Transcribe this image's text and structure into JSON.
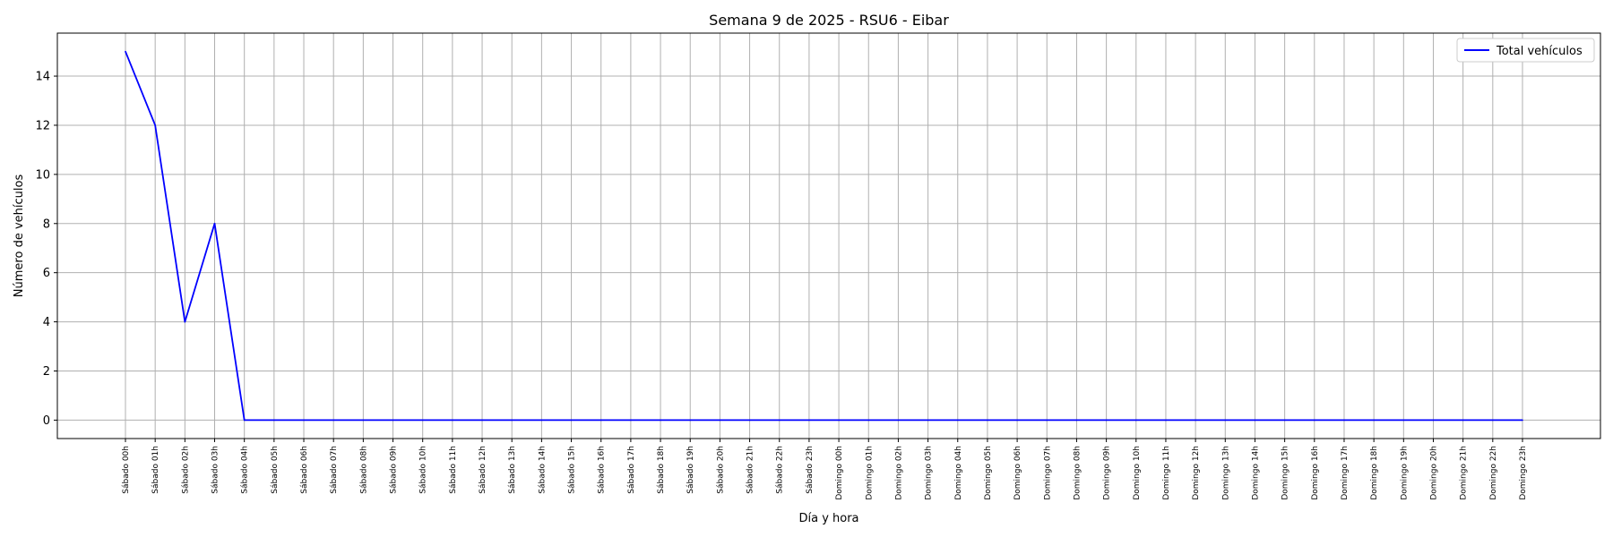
{
  "chart_data": {
    "type": "line",
    "title": "Semana 9 de 2025 - RSU6 - Eibar",
    "xlabel": "Día y hora",
    "ylabel": "Número de vehículos",
    "ylim": [
      -0.75,
      15.75
    ],
    "yticks": [
      0,
      2,
      4,
      6,
      8,
      10,
      12,
      14
    ],
    "grid": true,
    "legend": "top-right",
    "categories": [
      "Sábado 00h",
      "Sábado 01h",
      "Sábado 02h",
      "Sábado 03h",
      "Sábado 04h",
      "Sábado 05h",
      "Sábado 06h",
      "Sábado 07h",
      "Sábado 08h",
      "Sábado 09h",
      "Sábado 10h",
      "Sábado 11h",
      "Sábado 12h",
      "Sábado 13h",
      "Sábado 14h",
      "Sábado 15h",
      "Sábado 16h",
      "Sábado 17h",
      "Sábado 18h",
      "Sábado 19h",
      "Sábado 20h",
      "Sábado 21h",
      "Sábado 22h",
      "Sábado 23h",
      "Domingo 00h",
      "Domingo 01h",
      "Domingo 02h",
      "Domingo 03h",
      "Domingo 04h",
      "Domingo 05h",
      "Domingo 06h",
      "Domingo 07h",
      "Domingo 08h",
      "Domingo 09h",
      "Domingo 10h",
      "Domingo 11h",
      "Domingo 12h",
      "Domingo 13h",
      "Domingo 14h",
      "Domingo 15h",
      "Domingo 16h",
      "Domingo 17h",
      "Domingo 18h",
      "Domingo 19h",
      "Domingo 20h",
      "Domingo 21h",
      "Domingo 22h",
      "Domingo 23h"
    ],
    "series": [
      {
        "name": "Total vehículos",
        "color": "#0000ff",
        "values": [
          15,
          12,
          4,
          8,
          0,
          0,
          0,
          0,
          0,
          0,
          0,
          0,
          0,
          0,
          0,
          0,
          0,
          0,
          0,
          0,
          0,
          0,
          0,
          0,
          0,
          0,
          0,
          0,
          0,
          0,
          0,
          0,
          0,
          0,
          0,
          0,
          0,
          0,
          0,
          0,
          0,
          0,
          0,
          0,
          0,
          0,
          0,
          0
        ]
      }
    ]
  }
}
